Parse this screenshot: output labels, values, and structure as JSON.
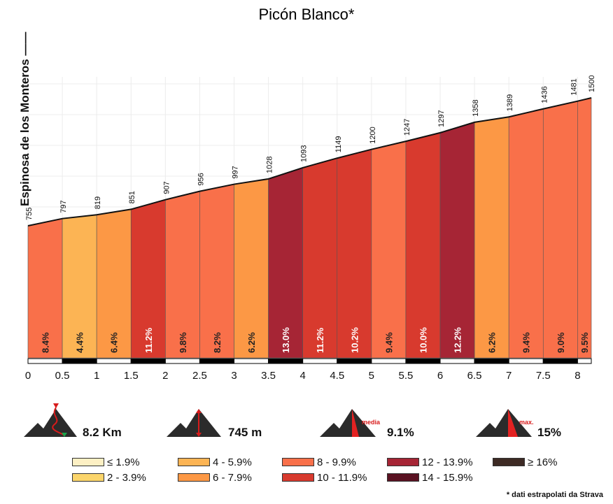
{
  "title": "Picón Blanco*",
  "start_location": "Espinosa de los Monteros",
  "chart_data": {
    "type": "area",
    "title": "Picón Blanco*",
    "x": [
      0,
      0.5,
      1,
      1.5,
      2,
      2.5,
      3,
      3.5,
      4,
      4.5,
      5,
      5.5,
      6,
      6.5,
      7,
      7.5,
      8,
      8.2
    ],
    "elevation": [
      755,
      797,
      819,
      851,
      907,
      956,
      997,
      1028,
      1093,
      1149,
      1200,
      1247,
      1297,
      1358,
      1389,
      1436,
      1481,
      1500
    ],
    "gradients": [
      "8.4%",
      "4.4%",
      "6.4%",
      "11.2%",
      "9.8%",
      "8.2%",
      "6.2%",
      "13.0%",
      "11.2%",
      "10.2%",
      "9.4%",
      "10.0%",
      "12.2%",
      "6.2%",
      "9.4%",
      "9.0%",
      "9.5%"
    ],
    "x_ticks": [
      "0",
      "0.5",
      "1",
      "1.5",
      "2",
      "2.5",
      "3",
      "3.5",
      "4",
      "4.5",
      "5",
      "5.5",
      "6",
      "6.5",
      "7",
      "7.5",
      "8"
    ],
    "x_range": [
      0,
      8.2
    ],
    "y_range": [
      650,
      1600
    ],
    "grid": true
  },
  "summary": {
    "distance": "8.2 Km",
    "elevation_gain": "745 m",
    "average_gradient": "9.1%",
    "max_gradient": "15%",
    "average_icon_label": "media",
    "max_icon_label": "max."
  },
  "legend": [
    {
      "label": "≤ 1.9%",
      "color": "#fdf0c4"
    },
    {
      "label": "2 - 3.9%",
      "color": "#fbd56b"
    },
    {
      "label": "4 - 5.9%",
      "color": "#fcb454"
    },
    {
      "label": "6 - 7.9%",
      "color": "#fc9845"
    },
    {
      "label": "8 - 9.9%",
      "color": "#f9704a"
    },
    {
      "label": "10 - 11.9%",
      "color": "#d83a2e"
    },
    {
      "label": "12 - 13.9%",
      "color": "#a62535"
    },
    {
      "label": "14 - 15.9%",
      "color": "#5a1222"
    },
    {
      "label": "≥ 16%",
      "color": "#3d2a24"
    }
  ],
  "footnote": "* dati estrapolati da Strava"
}
